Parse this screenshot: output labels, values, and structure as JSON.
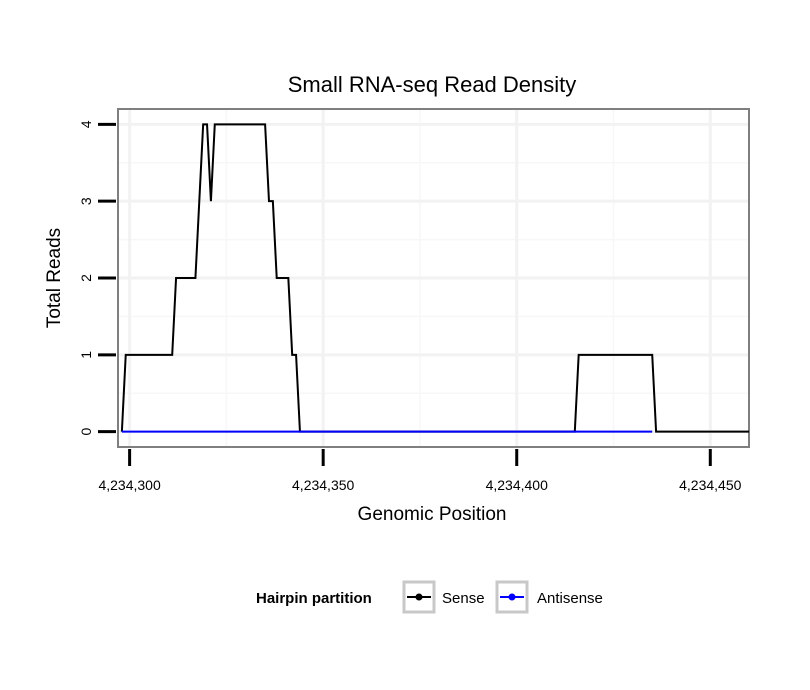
{
  "chart_data": {
    "type": "line",
    "title": "Small RNA-seq Read Density",
    "xlabel": "Genomic Position",
    "ylabel": "Total Reads",
    "xlim": [
      4234297,
      4234460
    ],
    "ylim": [
      -0.2,
      4.2
    ],
    "x_ticks": [
      4234300,
      4234350,
      4234400,
      4234450
    ],
    "x_tick_labels": [
      "4,234,300",
      "4,234,350",
      "4,234,400",
      "4,234,450"
    ],
    "y_ticks": [
      0,
      1,
      2,
      3,
      4
    ],
    "y_tick_labels": [
      "0",
      "1",
      "2",
      "3",
      "4"
    ],
    "grid": true,
    "legend": {
      "title": "Hairpin partition",
      "position": "bottom",
      "entries": [
        "Sense",
        "Antisense"
      ]
    },
    "series": [
      {
        "name": "Sense",
        "color": "#000000",
        "x": [
          4234298,
          4234299,
          4234311,
          4234312,
          4234317,
          4234318,
          4234319,
          4234320,
          4234321,
          4234322,
          4234323,
          4234335,
          4234336,
          4234337,
          4234338,
          4234341,
          4234342,
          4234343,
          4234344,
          4234345,
          4234415,
          4234416,
          4234435,
          4234436,
          4234460
        ],
        "values": [
          0,
          1,
          1,
          2,
          2,
          3,
          4,
          4,
          3,
          4,
          4,
          4,
          3,
          3,
          2,
          2,
          1,
          1,
          0,
          0,
          0,
          1,
          1,
          0,
          0
        ]
      },
      {
        "name": "Antisense",
        "color": "#0000ff",
        "x": [
          4234298,
          4234345,
          4234415,
          4234435
        ],
        "values": [
          0,
          0,
          0,
          0
        ]
      }
    ]
  }
}
